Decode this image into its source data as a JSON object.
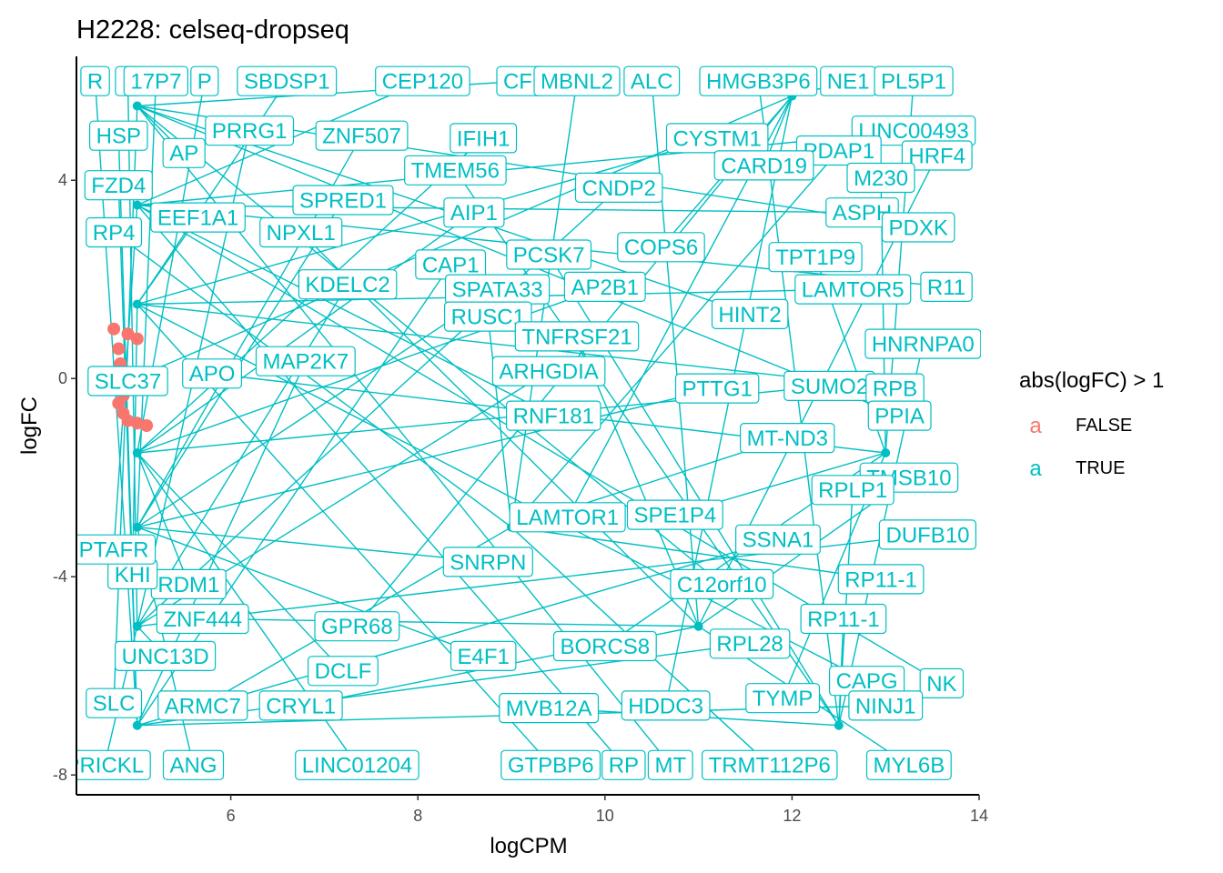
{
  "colors": {
    "true_series": "#00BFC4",
    "false_series": "#F8766D",
    "axis": "#000000",
    "tick_text": "#4d4d4d",
    "label_fill": "#ffffff"
  },
  "chart_data": {
    "type": "scatter",
    "title": "H2228: celseq-dropseq",
    "xlabel": "logCPM",
    "ylabel": "logFC",
    "xlim": [
      4.35,
      14.0
    ],
    "ylim": [
      -8.4,
      6.5
    ],
    "x_ticks": [
      6,
      8,
      10,
      12,
      14
    ],
    "y_ticks": [
      4,
      0,
      -4,
      -8
    ],
    "x_tick_labels": [
      "6",
      "8",
      "10",
      "12",
      "14"
    ],
    "y_tick_labels": [
      "4",
      "0",
      "-4",
      "-8"
    ],
    "grid": false,
    "legend": {
      "title": "abs(logFC) > 1",
      "position": "right",
      "key_glyph": "a",
      "entries": [
        {
          "label": "FALSE",
          "color": "#F8766D"
        },
        {
          "label": "TRUE",
          "color": "#00BFC4"
        }
      ]
    },
    "series": [
      {
        "name": "FALSE",
        "color": "#F8766D",
        "points": [
          {
            "x": 4.75,
            "y": 1.0
          },
          {
            "x": 4.8,
            "y": 0.6
          },
          {
            "x": 4.82,
            "y": 0.3
          },
          {
            "x": 4.78,
            "y": -0.2
          },
          {
            "x": 4.8,
            "y": -0.5
          },
          {
            "x": 4.85,
            "y": -0.7
          },
          {
            "x": 4.9,
            "y": -0.85
          },
          {
            "x": 5.0,
            "y": -0.9
          },
          {
            "x": 5.1,
            "y": -0.95
          },
          {
            "x": 4.9,
            "y": 0.9
          },
          {
            "x": 5.0,
            "y": 0.8
          },
          {
            "x": 4.85,
            "y": -0.35
          }
        ]
      },
      {
        "name": "TRUE",
        "color": "#00BFC4",
        "points": [
          {
            "x": 5.0,
            "y": -7.0
          },
          {
            "x": 5.0,
            "y": -5.0
          },
          {
            "x": 5.0,
            "y": -3.0
          },
          {
            "x": 5.0,
            "y": -1.5
          },
          {
            "x": 5.0,
            "y": 1.5
          },
          {
            "x": 5.0,
            "y": 3.5
          },
          {
            "x": 5.0,
            "y": 5.5
          },
          {
            "x": 9.0,
            "y": -3.0
          },
          {
            "x": 11.0,
            "y": -5.0
          },
          {
            "x": 12.5,
            "y": -7.0
          },
          {
            "x": 12.0,
            "y": 5.7
          },
          {
            "x": 13.0,
            "y": -1.5
          }
        ]
      }
    ],
    "labels": [
      {
        "text": "R",
        "x": 4.55,
        "y": 6.0
      },
      {
        "text": "1",
        "x": 4.9,
        "y": 6.0
      },
      {
        "text": "17P7",
        "x": 5.2,
        "y": 6.0
      },
      {
        "text": "P",
        "x": 5.72,
        "y": 6.0
      },
      {
        "text": "SBDSP1",
        "x": 6.6,
        "y": 6.0
      },
      {
        "text": "CEP120",
        "x": 8.05,
        "y": 6.0
      },
      {
        "text": "CFI",
        "x": 9.1,
        "y": 6.0
      },
      {
        "text": "MBNL2",
        "x": 9.7,
        "y": 6.0
      },
      {
        "text": "ALC",
        "x": 10.5,
        "y": 6.0
      },
      {
        "text": "HMGB3P6",
        "x": 11.64,
        "y": 6.0
      },
      {
        "text": "NE1",
        "x": 12.6,
        "y": 6.0
      },
      {
        "text": "PL5P1",
        "x": 13.3,
        "y": 6.0
      },
      {
        "text": "HSP",
        "x": 4.8,
        "y": 4.9
      },
      {
        "text": "PRRG1",
        "x": 6.2,
        "y": 5.0
      },
      {
        "text": "ZNF507",
        "x": 7.4,
        "y": 4.9
      },
      {
        "text": "IFIH1",
        "x": 8.7,
        "y": 4.85
      },
      {
        "text": "CYSTM1",
        "x": 11.2,
        "y": 4.85
      },
      {
        "text": "LINC00493",
        "x": 13.3,
        "y": 5.0
      },
      {
        "text": "AP",
        "x": 5.5,
        "y": 4.55
      },
      {
        "text": "PDAP1",
        "x": 12.5,
        "y": 4.6
      },
      {
        "text": "HRF4",
        "x": 13.55,
        "y": 4.5
      },
      {
        "text": "TMEM56",
        "x": 8.4,
        "y": 4.2
      },
      {
        "text": "CARD19",
        "x": 11.7,
        "y": 4.3
      },
      {
        "text": "M230",
        "x": 12.95,
        "y": 4.05
      },
      {
        "text": "FZD4",
        "x": 4.8,
        "y": 3.9
      },
      {
        "text": "CNDP2",
        "x": 10.15,
        "y": 3.85
      },
      {
        "text": "SPRED1",
        "x": 7.2,
        "y": 3.6
      },
      {
        "text": "AIP1",
        "x": 8.6,
        "y": 3.35
      },
      {
        "text": "EEF1A1",
        "x": 5.65,
        "y": 3.25
      },
      {
        "text": "ASPH",
        "x": 12.75,
        "y": 3.35
      },
      {
        "text": "PDXK",
        "x": 13.35,
        "y": 3.05
      },
      {
        "text": "RP4",
        "x": 4.75,
        "y": 2.95
      },
      {
        "text": "NPXL1",
        "x": 6.75,
        "y": 2.95
      },
      {
        "text": "PCSK7",
        "x": 9.4,
        "y": 2.5
      },
      {
        "text": "COPS6",
        "x": 10.6,
        "y": 2.65
      },
      {
        "text": "TPT1P9",
        "x": 12.25,
        "y": 2.45
      },
      {
        "text": "CAP1",
        "x": 8.35,
        "y": 2.3
      },
      {
        "text": "KDELC2",
        "x": 7.25,
        "y": 1.9
      },
      {
        "text": "SPATA33",
        "x": 8.85,
        "y": 1.8
      },
      {
        "text": "AP2B1",
        "x": 10.0,
        "y": 1.85
      },
      {
        "text": "LAMTOR5",
        "x": 12.65,
        "y": 1.8
      },
      {
        "text": "R11",
        "x": 13.65,
        "y": 1.85
      },
      {
        "text": "HINT2",
        "x": 11.55,
        "y": 1.3
      },
      {
        "text": "RUSC1",
        "x": 8.75,
        "y": 1.25
      },
      {
        "text": "TNFRSF21",
        "x": 9.7,
        "y": 0.85
      },
      {
        "text": "HNRNPA0",
        "x": 13.4,
        "y": 0.7
      },
      {
        "text": "SLC37",
        "x": 4.9,
        "y": -0.05
      },
      {
        "text": "APO",
        "x": 5.8,
        "y": 0.1
      },
      {
        "text": "MAP2K7",
        "x": 6.8,
        "y": 0.35
      },
      {
        "text": "ARHGDIA",
        "x": 9.4,
        "y": 0.15
      },
      {
        "text": "PTTG1",
        "x": 11.2,
        "y": -0.2
      },
      {
        "text": "SUMO2",
        "x": 12.4,
        "y": -0.15
      },
      {
        "text": "RPB",
        "x": 13.1,
        "y": -0.2
      },
      {
        "text": "RNF181",
        "x": 9.45,
        "y": -0.75
      },
      {
        "text": "PPIA",
        "x": 13.15,
        "y": -0.75
      },
      {
        "text": "MT-ND3",
        "x": 11.95,
        "y": -1.2
      },
      {
        "text": "TMSB10",
        "x": 13.25,
        "y": -2.0
      },
      {
        "text": "RPLP1",
        "x": 12.65,
        "y": -2.25
      },
      {
        "text": "LAMTOR1",
        "x": 9.6,
        "y": -2.8
      },
      {
        "text": "SPE1P4",
        "x": 10.75,
        "y": -2.75
      },
      {
        "text": "SSNA1",
        "x": 11.85,
        "y": -3.25
      },
      {
        "text": "DUFB10",
        "x": 13.45,
        "y": -3.15
      },
      {
        "text": "SNRPN",
        "x": 8.75,
        "y": -3.7
      },
      {
        "text": "RDM1",
        "x": 5.55,
        "y": -4.15
      },
      {
        "text": "KHI",
        "x": 4.95,
        "y": -3.95
      },
      {
        "text": "PTAFR",
        "x": 4.75,
        "y": -3.45
      },
      {
        "text": "C12orf10",
        "x": 11.25,
        "y": -4.15
      },
      {
        "text": "RP11-1",
        "x": 12.95,
        "y": -4.05
      },
      {
        "text": "ZNF444",
        "x": 5.7,
        "y": -4.85
      },
      {
        "text": "RP11-1",
        "x": 12.55,
        "y": -4.85
      },
      {
        "text": "GPR68",
        "x": 7.35,
        "y": -5.0
      },
      {
        "text": "BORCS8",
        "x": 10.0,
        "y": -5.4
      },
      {
        "text": "RPL28",
        "x": 11.55,
        "y": -5.35
      },
      {
        "text": "UNC13D",
        "x": 5.3,
        "y": -5.6
      },
      {
        "text": "E4F1",
        "x": 8.7,
        "y": -5.6
      },
      {
        "text": "DCLF",
        "x": 7.2,
        "y": -5.9
      },
      {
        "text": "CAPG",
        "x": 12.8,
        "y": -6.1
      },
      {
        "text": "NK",
        "x": 13.6,
        "y": -6.15
      },
      {
        "text": "SLC",
        "x": 4.75,
        "y": -6.55
      },
      {
        "text": "ARMC7",
        "x": 5.7,
        "y": -6.6
      },
      {
        "text": "CRYL1",
        "x": 6.75,
        "y": -6.6
      },
      {
        "text": "MVB12A",
        "x": 9.4,
        "y": -6.65
      },
      {
        "text": "HDDC3",
        "x": 10.65,
        "y": -6.6
      },
      {
        "text": "TYMP",
        "x": 11.9,
        "y": -6.45
      },
      {
        "text": "NINJ1",
        "x": 13.0,
        "y": -6.6
      },
      {
        "text": "PRICKL",
        "x": 4.65,
        "y": -7.8
      },
      {
        "text": "ANG",
        "x": 5.6,
        "y": -7.8
      },
      {
        "text": "LINC01204",
        "x": 7.35,
        "y": -7.8
      },
      {
        "text": "GTPBP6",
        "x": 9.42,
        "y": -7.8
      },
      {
        "text": "RP",
        "x": 10.2,
        "y": -7.8
      },
      {
        "text": "MT",
        "x": 10.7,
        "y": -7.8
      },
      {
        "text": "TRMT112P6",
        "x": 11.76,
        "y": -7.8
      },
      {
        "text": "MYL6B",
        "x": 13.25,
        "y": -7.8
      }
    ]
  }
}
